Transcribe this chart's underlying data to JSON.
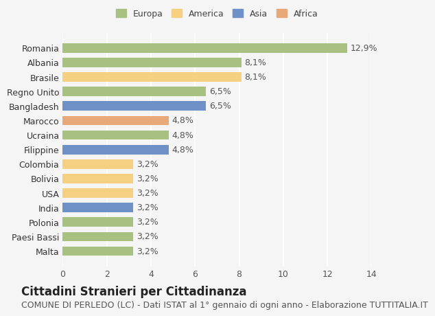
{
  "categories": [
    "Romania",
    "Albania",
    "Brasile",
    "Regno Unito",
    "Bangladesh",
    "Marocco",
    "Ucraina",
    "Filippine",
    "Colombia",
    "Bolivia",
    "USA",
    "India",
    "Polonia",
    "Paesi Bassi",
    "Malta"
  ],
  "values": [
    12.9,
    8.1,
    8.1,
    6.5,
    6.5,
    4.8,
    4.8,
    4.8,
    3.2,
    3.2,
    3.2,
    3.2,
    3.2,
    3.2,
    3.2
  ],
  "labels": [
    "12,9%",
    "8,1%",
    "8,1%",
    "6,5%",
    "6,5%",
    "4,8%",
    "4,8%",
    "4,8%",
    "3,2%",
    "3,2%",
    "3,2%",
    "3,2%",
    "3,2%",
    "3,2%",
    "3,2%"
  ],
  "continents": [
    "Europa",
    "Europa",
    "America",
    "Europa",
    "Asia",
    "Africa",
    "Europa",
    "Asia",
    "America",
    "America",
    "America",
    "Asia",
    "Europa",
    "Europa",
    "Europa"
  ],
  "colors": {
    "Europa": "#a8c080",
    "America": "#f5d080",
    "Asia": "#7090c8",
    "Africa": "#e8a878"
  },
  "legend_order": [
    "Europa",
    "America",
    "Asia",
    "Africa"
  ],
  "title": "Cittadini Stranieri per Cittadinanza",
  "subtitle": "COMUNE DI PERLEDO (LC) - Dati ISTAT al 1° gennaio di ogni anno - Elaborazione TUTTITALIA.IT",
  "xlim": [
    0,
    14
  ],
  "xticks": [
    0,
    2,
    4,
    6,
    8,
    10,
    12,
    14
  ],
  "background_color": "#f5f5f5",
  "bar_background": "#ffffff",
  "grid_color": "#ffffff",
  "label_fontsize": 9,
  "title_fontsize": 12,
  "subtitle_fontsize": 9
}
